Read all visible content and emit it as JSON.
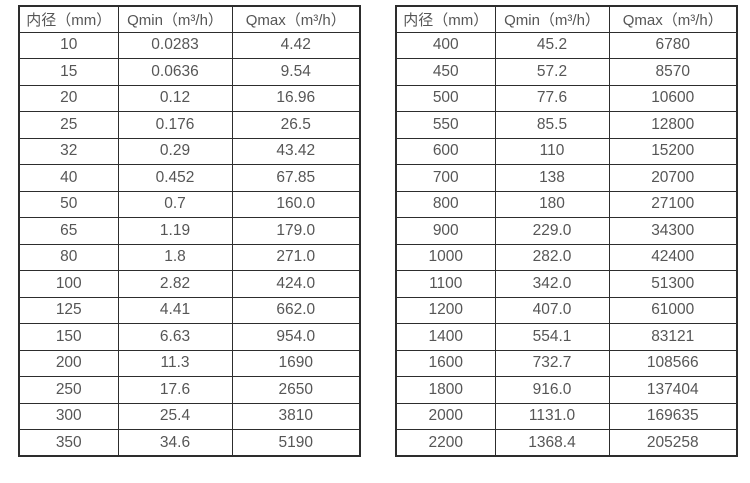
{
  "colors": {
    "background": "#ffffff",
    "border": "#2d2d2d",
    "text": "#565656"
  },
  "tables": [
    {
      "name": "small-diameter-flow-table",
      "headers": [
        "内径（mm）",
        "Qmin（m³/h）",
        "Qmax（m³/h）"
      ],
      "rows": [
        [
          "10",
          "0.0283",
          "4.42"
        ],
        [
          "15",
          "0.0636",
          "9.54"
        ],
        [
          "20",
          "0.12",
          "16.96"
        ],
        [
          "25",
          "0.176",
          "26.5"
        ],
        [
          "32",
          "0.29",
          "43.42"
        ],
        [
          "40",
          "0.452",
          "67.85"
        ],
        [
          "50",
          "0.7",
          "160.0"
        ],
        [
          "65",
          "1.19",
          "179.0"
        ],
        [
          "80",
          "1.8",
          "271.0"
        ],
        [
          "100",
          "2.82",
          "424.0"
        ],
        [
          "125",
          "4.41",
          "662.0"
        ],
        [
          "150",
          "6.63",
          "954.0"
        ],
        [
          "200",
          "11.3",
          "1690"
        ],
        [
          "250",
          "17.6",
          "2650"
        ],
        [
          "300",
          "25.4",
          "3810"
        ],
        [
          "350",
          "34.6",
          "5190"
        ]
      ]
    },
    {
      "name": "large-diameter-flow-table",
      "headers": [
        "内径（mm）",
        "Qmin（m³/h）",
        "Qmax（m³/h）"
      ],
      "rows": [
        [
          "400",
          "45.2",
          "6780"
        ],
        [
          "450",
          "57.2",
          "8570"
        ],
        [
          "500",
          "77.6",
          "10600"
        ],
        [
          "550",
          "85.5",
          "12800"
        ],
        [
          "600",
          "110",
          "15200"
        ],
        [
          "700",
          "138",
          "20700"
        ],
        [
          "800",
          "180",
          "27100"
        ],
        [
          "900",
          "229.0",
          "34300"
        ],
        [
          "1000",
          "282.0",
          "42400"
        ],
        [
          "1100",
          "342.0",
          "51300"
        ],
        [
          "1200",
          "407.0",
          "61000"
        ],
        [
          "1400",
          "554.1",
          "83121"
        ],
        [
          "1600",
          "732.7",
          "108566"
        ],
        [
          "1800",
          "916.0",
          "137404"
        ],
        [
          "2000",
          "1131.0",
          "169635"
        ],
        [
          "2200",
          "1368.4",
          "205258"
        ]
      ]
    }
  ]
}
